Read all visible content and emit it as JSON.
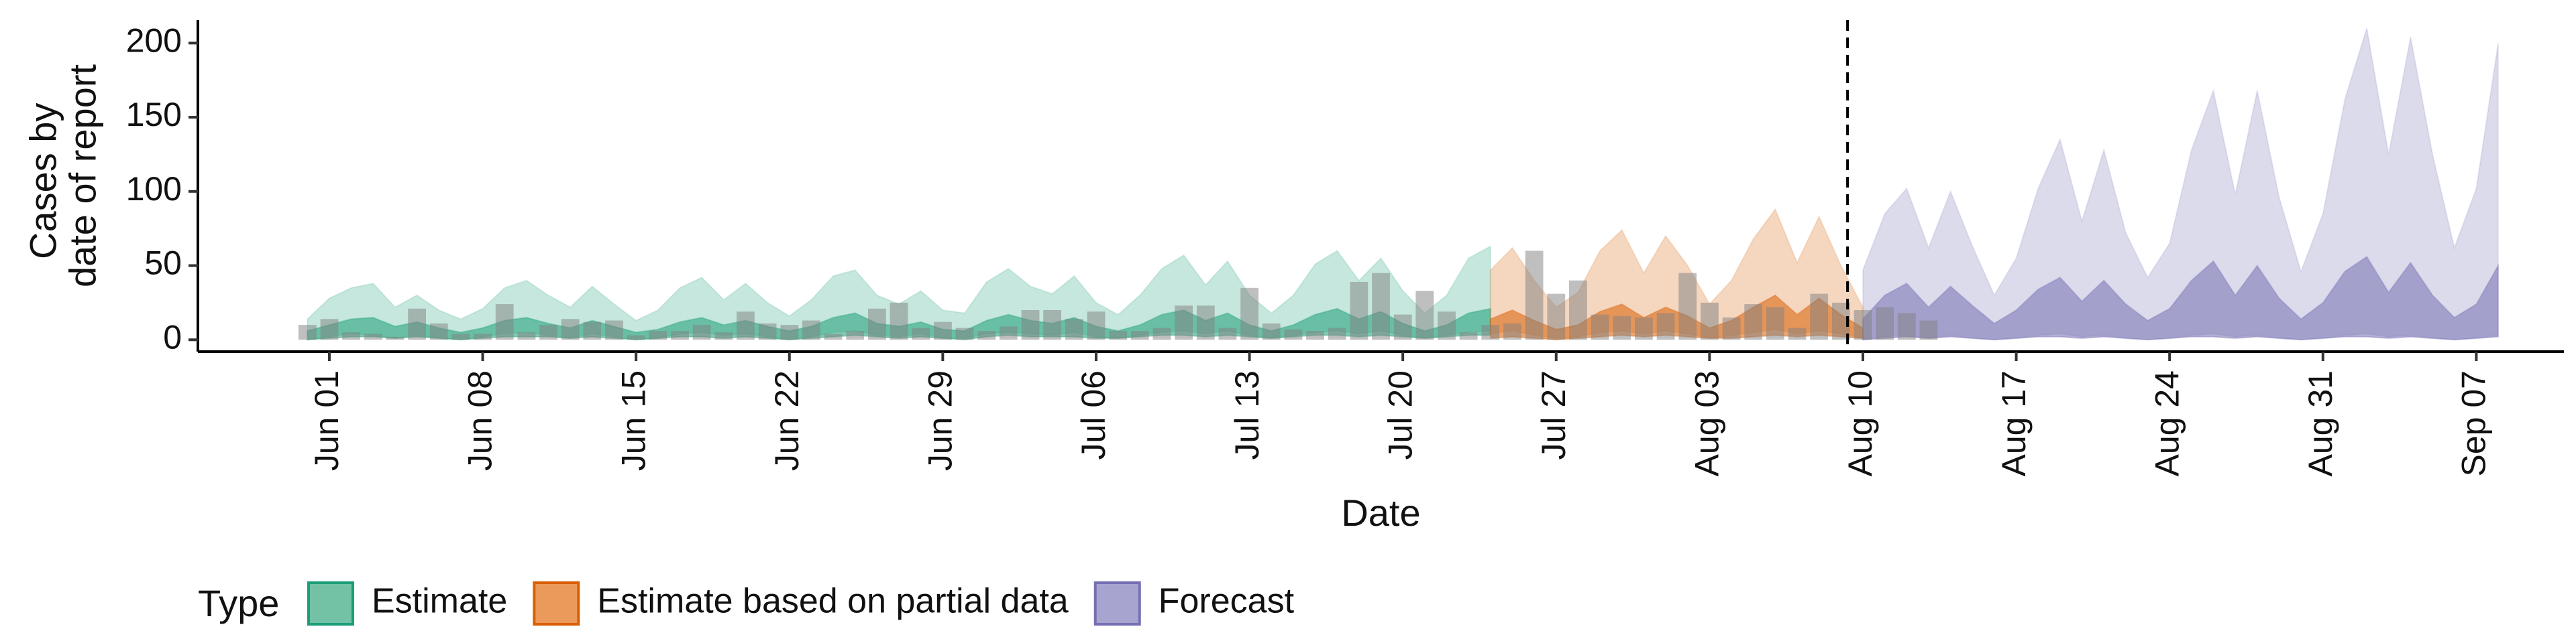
{
  "chart_data": {
    "type": "area",
    "title": "",
    "xlabel": "Date",
    "ylabel_lines": [
      "Cases by",
      "date of report"
    ],
    "x_ticks": [
      "Jun 01",
      "Jun 08",
      "Jun 15",
      "Jun 22",
      "Jun 29",
      "Jul 06",
      "Jul 13",
      "Jul 20",
      "Jul 27",
      "Aug 03",
      "Aug 10",
      "Aug 17",
      "Aug 24",
      "Aug 31",
      "Sep 07"
    ],
    "x_tick_days": [
      0,
      7,
      14,
      21,
      28,
      35,
      42,
      49,
      56,
      63,
      70,
      77,
      84,
      91,
      98
    ],
    "day0_label": "Jun 01",
    "xlim_days": [
      -6,
      102
    ],
    "y_ticks": [
      0,
      50,
      100,
      150,
      200
    ],
    "ylim": [
      -8,
      220
    ],
    "grid": false,
    "forecast_date_day": 69.3,
    "legend": {
      "placement": "bottom-left",
      "title": "Type",
      "items": [
        {
          "label": "Estimate",
          "fill": "#73c2a6",
          "stroke": "#1b9e77"
        },
        {
          "label": "Estimate based on partial data",
          "fill": "#eb9a5b",
          "stroke": "#d95f02"
        },
        {
          "label": "Forecast",
          "fill": "#a7a4cf",
          "stroke": "#7570b3"
        }
      ]
    },
    "colors": {
      "estimate": "#1b9e77",
      "partial": "#d95f02",
      "forecast": "#7570b3",
      "observed_bar": "#808080",
      "vline": "#000000"
    },
    "observed": {
      "start_day": -1,
      "values": [
        10,
        14,
        5,
        4,
        2,
        21,
        11,
        4,
        4,
        24,
        5,
        10,
        14,
        12,
        13,
        3,
        6,
        6,
        10,
        5,
        19,
        11,
        10,
        13,
        4,
        6,
        21,
        25,
        8,
        12,
        8,
        6,
        9,
        20,
        20,
        14,
        19,
        6,
        6,
        8,
        23,
        23,
        8,
        35,
        11,
        7,
        6,
        8,
        39,
        45,
        17,
        33,
        19,
        5,
        10,
        11,
        60,
        31,
        40,
        17,
        16,
        15,
        18,
        45,
        25,
        15,
        24,
        22,
        8,
        31,
        25,
        20,
        22,
        18,
        13
      ]
    },
    "series": [
      {
        "name": "Estimate",
        "color_key": "estimate",
        "start_day": -1,
        "outer_upper": [
          14,
          28,
          35,
          38,
          22,
          30,
          20,
          14,
          21,
          35,
          40,
          30,
          22,
          36,
          24,
          13,
          20,
          35,
          42,
          27,
          38,
          25,
          16,
          27,
          43,
          47,
          30,
          24,
          33,
          20,
          18,
          39,
          48,
          36,
          31,
          43,
          25,
          17,
          30,
          48,
          57,
          37,
          53,
          30,
          18,
          30,
          51,
          60,
          40,
          55,
          33,
          18,
          30,
          55,
          63
        ],
        "outer_lower": [
          0,
          2,
          4,
          3,
          1,
          3,
          1,
          0,
          2,
          4,
          5,
          3,
          1,
          4,
          2,
          0,
          1,
          4,
          5,
          3,
          4,
          2,
          0,
          2,
          5,
          6,
          3,
          2,
          4,
          1,
          1,
          4,
          5,
          4,
          3,
          5,
          2,
          1,
          3,
          5,
          6,
          4,
          6,
          3,
          1,
          3,
          5,
          6,
          4,
          6,
          3,
          1,
          3,
          5,
          6
        ],
        "inner_upper": [
          6,
          10,
          14,
          15,
          9,
          12,
          8,
          5,
          8,
          13,
          15,
          11,
          8,
          13,
          9,
          5,
          7,
          12,
          15,
          10,
          13,
          9,
          6,
          9,
          15,
          18,
          11,
          9,
          12,
          7,
          6,
          13,
          17,
          13,
          11,
          15,
          9,
          6,
          10,
          17,
          20,
          13,
          18,
          10,
          6,
          10,
          17,
          21,
          14,
          19,
          11,
          6,
          10,
          18,
          21
        ],
        "inner_lower": [
          0,
          1,
          2,
          2,
          1,
          2,
          1,
          0,
          1,
          2,
          2,
          2,
          1,
          2,
          1,
          0,
          1,
          2,
          2,
          1,
          2,
          1,
          0,
          1,
          2,
          3,
          2,
          1,
          2,
          1,
          0,
          2,
          3,
          2,
          2,
          2,
          1,
          1,
          2,
          3,
          3,
          2,
          3,
          2,
          1,
          2,
          3,
          3,
          2,
          3,
          2,
          1,
          2,
          3,
          3
        ]
      },
      {
        "name": "Estimate based on partial data",
        "color_key": "partial",
        "start_day": 53,
        "outer_upper": [
          47,
          62,
          40,
          22,
          32,
          60,
          74,
          45,
          70,
          50,
          24,
          40,
          68,
          88,
          52,
          83,
          50,
          22
        ],
        "outer_lower": [
          4,
          6,
          3,
          1,
          2,
          5,
          6,
          4,
          6,
          4,
          1,
          3,
          5,
          7,
          4,
          6,
          4,
          1
        ],
        "inner_upper": [
          14,
          20,
          13,
          7,
          10,
          19,
          24,
          15,
          22,
          16,
          8,
          13,
          22,
          30,
          17,
          28,
          17,
          8
        ],
        "inner_lower": [
          1,
          2,
          1,
          0,
          1,
          2,
          3,
          2,
          3,
          2,
          1,
          1,
          2,
          3,
          2,
          3,
          2,
          1
        ]
      },
      {
        "name": "Forecast",
        "color_key": "forecast",
        "start_day": 70,
        "outer_upper": [
          47,
          85,
          102,
          62,
          100,
          63,
          30,
          55,
          102,
          135,
          80,
          128,
          72,
          42,
          65,
          128,
          168,
          98,
          168,
          96,
          46,
          85,
          162,
          210,
          125,
          204,
          125,
          62,
          102,
          200
        ],
        "outer_lower": [
          0,
          2,
          3,
          1,
          3,
          1,
          0,
          1,
          3,
          4,
          2,
          3,
          1,
          0,
          1,
          3,
          4,
          2,
          3,
          1,
          0,
          1,
          3,
          4,
          2,
          3,
          1,
          0,
          1,
          3
        ],
        "inner_upper": [
          14,
          30,
          38,
          22,
          36,
          23,
          11,
          20,
          34,
          42,
          26,
          40,
          24,
          13,
          21,
          40,
          53,
          30,
          50,
          28,
          14,
          25,
          46,
          56,
          32,
          52,
          30,
          15,
          24,
          50
        ],
        "inner_lower": [
          0,
          1,
          2,
          1,
          2,
          1,
          0,
          1,
          2,
          2,
          1,
          2,
          1,
          0,
          1,
          2,
          2,
          1,
          2,
          1,
          0,
          1,
          2,
          2,
          1,
          2,
          1,
          0,
          1,
          2
        ]
      }
    ]
  }
}
